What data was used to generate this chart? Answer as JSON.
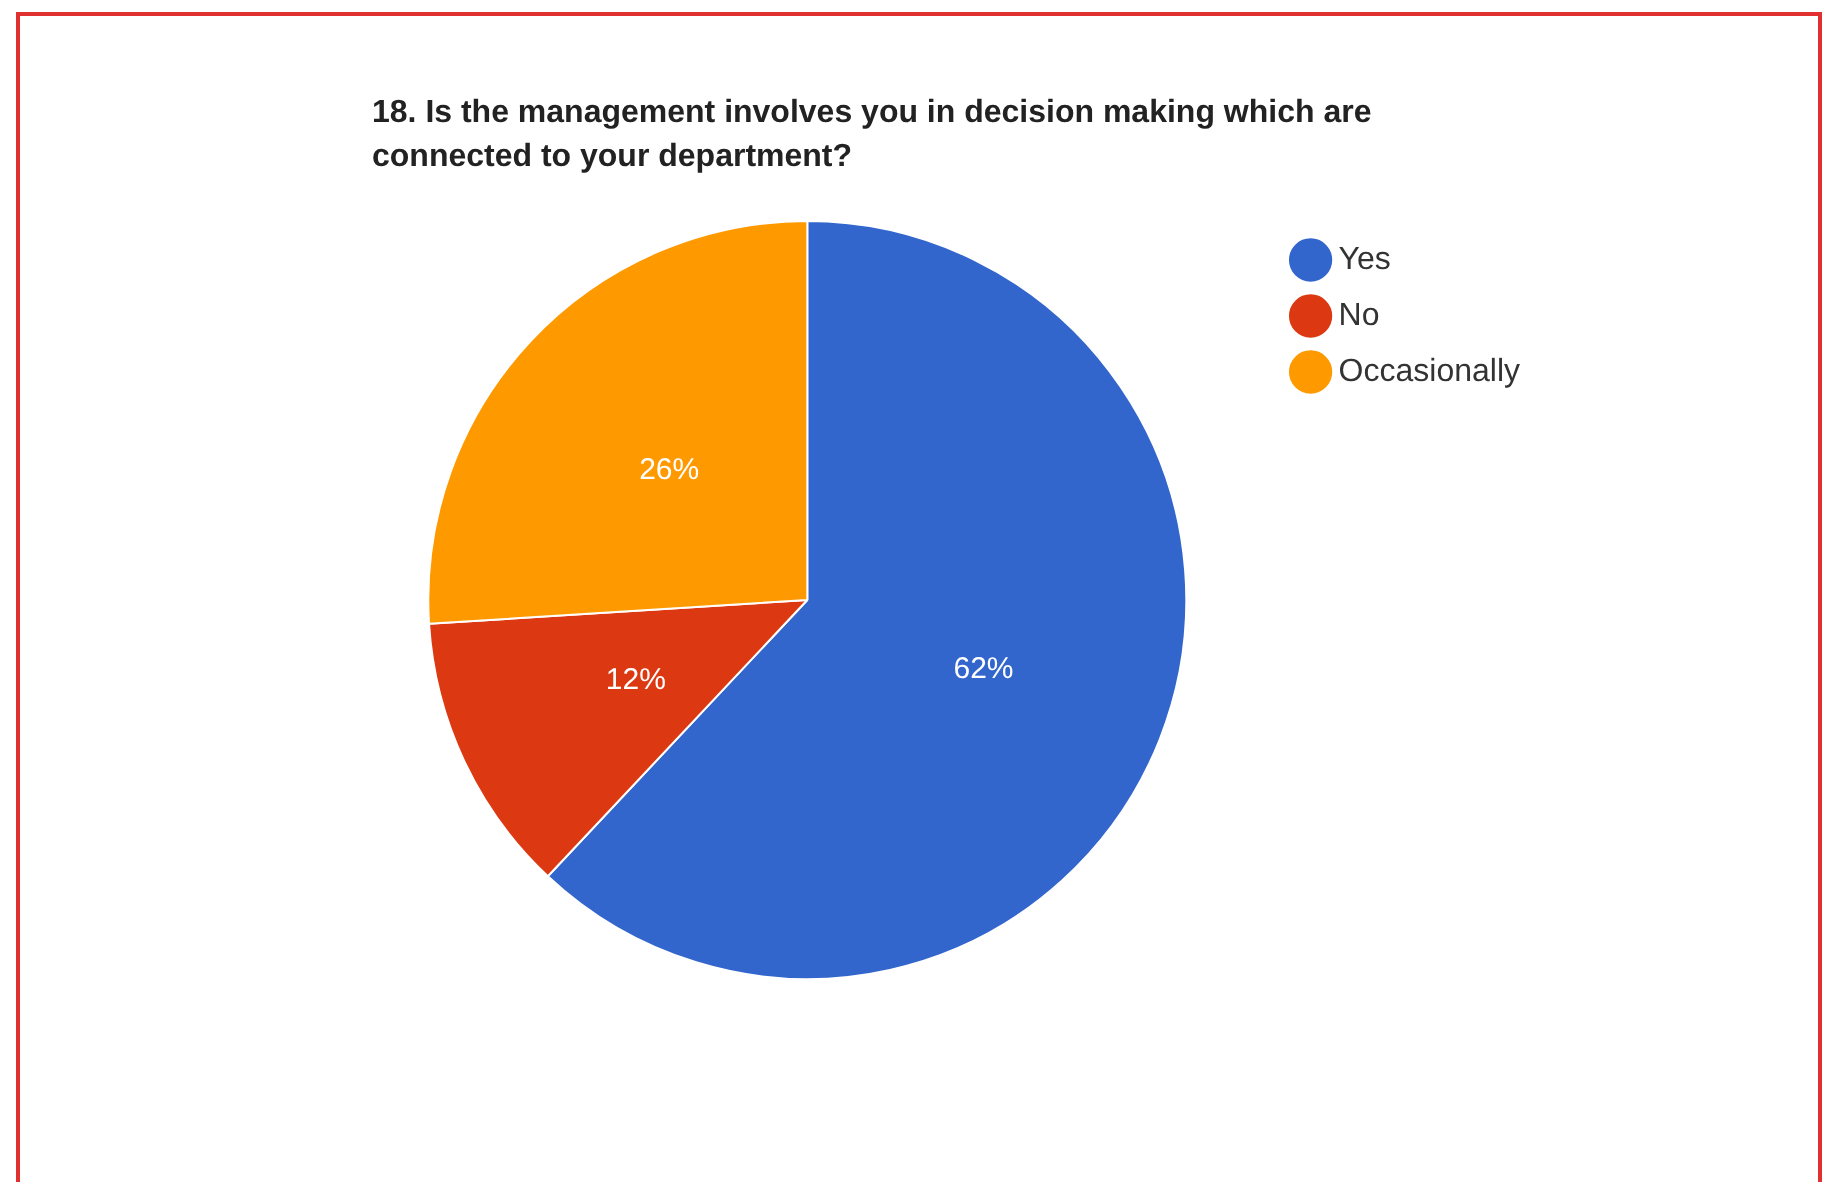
{
  "chart_data": {
    "type": "pie",
    "title": "18. Is the management involves you in decision making which are connected to your department?",
    "categories": [
      "Yes",
      "No",
      "Occasionally"
    ],
    "values": [
      62,
      12,
      26
    ],
    "colors": [
      "#3366cc",
      "#dc3912",
      "#ff9900"
    ],
    "value_labels": [
      "62%",
      "12%",
      "26%"
    ],
    "legend": "right"
  }
}
